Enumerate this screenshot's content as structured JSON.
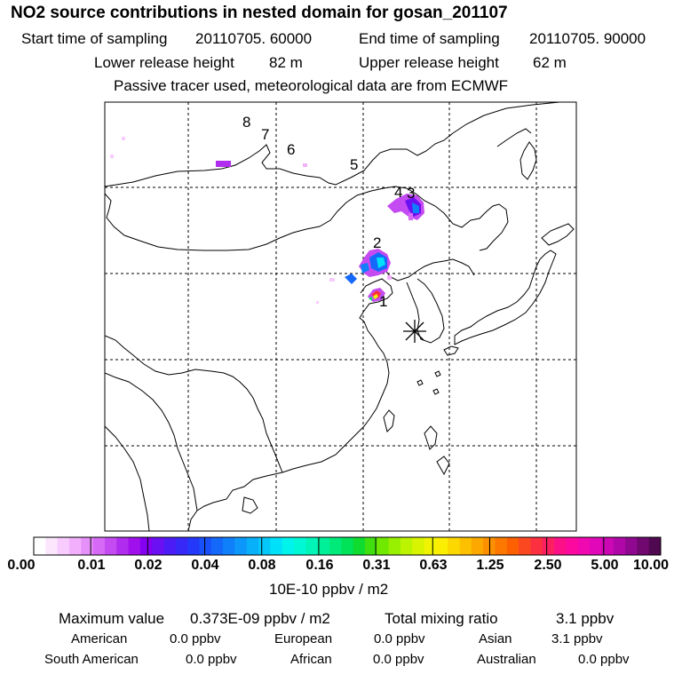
{
  "title": "NO2 source contributions in nested domain for gosan_201107",
  "header": {
    "start_label": "Start time of sampling",
    "start_value": "20110705. 60000",
    "end_label": "End time of sampling",
    "end_value": "20110705. 90000",
    "lower_label": "Lower release height",
    "lower_value": "82 m",
    "upper_label": "Upper release height",
    "upper_value": "62 m",
    "tracer_note": "Passive tracer used, meteorological data are from ECMWF"
  },
  "map": {
    "source_labels": [
      "8",
      "7",
      "6",
      "5",
      "4",
      "3",
      "2",
      "1"
    ],
    "receptor_marker": "receptor-asterisk"
  },
  "colorbar": {
    "tick_labels": [
      "0.00",
      "0.01",
      "0.02",
      "0.04",
      "0.08",
      "0.16",
      "0.31",
      "0.63",
      "1.25",
      "2.50",
      "5.00",
      "10.00"
    ],
    "unit_label": "10E-10 ppbv / m2",
    "colors": [
      "#ffffff",
      "#fce6fe",
      "#f8ccfe",
      "#f2b0fc",
      "#e690fa",
      "#d66af6",
      "#c44af2",
      "#b02cee",
      "#a010ec",
      "#8400f0",
      "#6a10f2",
      "#4c1cf6",
      "#3828f8",
      "#2438fa",
      "#1850fa",
      "#1468fa",
      "#1080fa",
      "#0c98fa",
      "#08b0fa",
      "#04c8fa",
      "#00e0f8",
      "#00f4ec",
      "#00f8d4",
      "#00f4b8",
      "#00f09a",
      "#00ea7a",
      "#00e258",
      "#10dc30",
      "#40e010",
      "#70e800",
      "#98f000",
      "#bcf400",
      "#d8f400",
      "#f0f400",
      "#fcee00",
      "#fcd800",
      "#fcc000",
      "#fca800",
      "#fc9000",
      "#fc7800",
      "#fc6000",
      "#fc4820",
      "#fc3040",
      "#fc2060",
      "#fc1088",
      "#fc0aa0",
      "#f008b0",
      "#e008b8",
      "#cc08b4",
      "#b008a8",
      "#900890",
      "#700870",
      "#500850"
    ]
  },
  "stats": {
    "max_label": "Maximum value",
    "max_value": "0.373E-09 ppbv / m2",
    "total_label": "Total mixing ratio",
    "total_value": "3.1 ppbv",
    "regions": [
      {
        "name": "American",
        "value": "0.0 ppbv"
      },
      {
        "name": "European",
        "value": "0.0 ppbv"
      },
      {
        "name": "Asian",
        "value": "3.1 ppbv"
      },
      {
        "name": "South American",
        "value": "0.0 ppbv"
      },
      {
        "name": "African",
        "value": "0.0 ppbv"
      },
      {
        "name": "Australian",
        "value": "0.0 ppbv"
      }
    ]
  }
}
